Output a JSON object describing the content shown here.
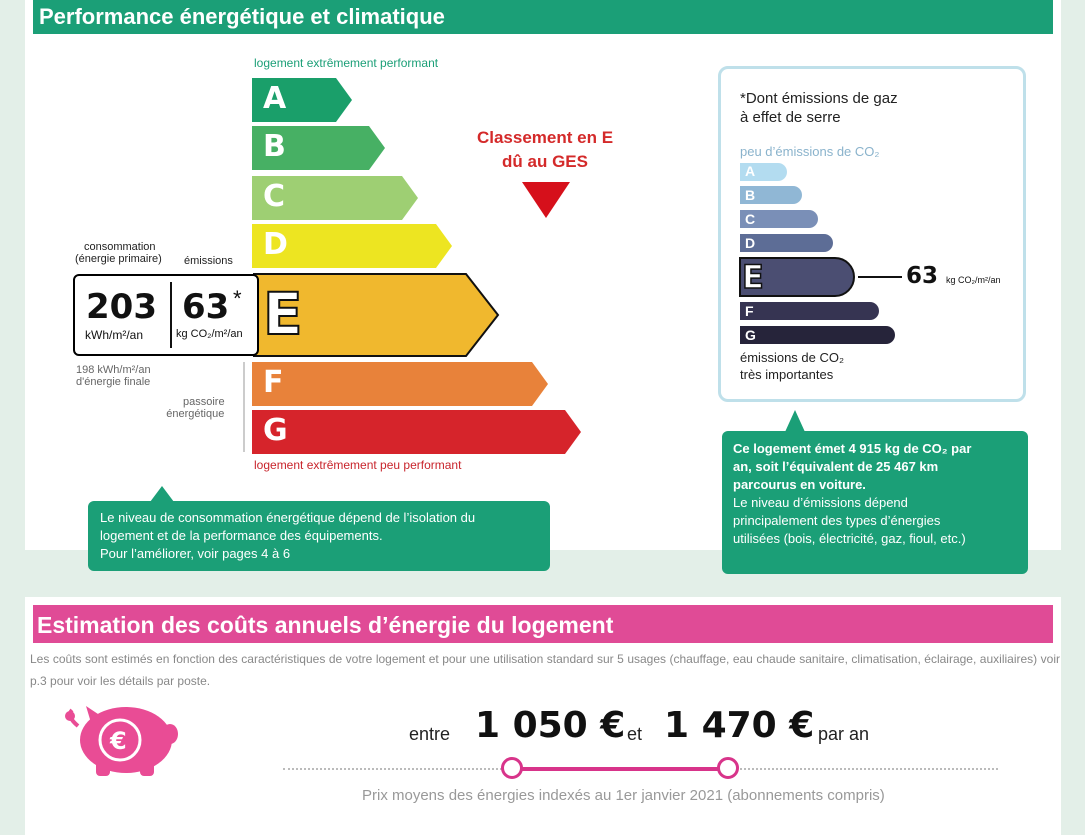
{
  "section1": {
    "title": "Performance énergétique et climatique",
    "top_label": "logement extrêmement performant",
    "bottom_label": "logement extrêmement peu performant",
    "letters": [
      "A",
      "B",
      "C",
      "D",
      "E",
      "F",
      "G"
    ],
    "bar_colors": [
      "#1a9f6a",
      "#47b064",
      "#9ecf73",
      "#ede521",
      "#f0b82e",
      "#e8823a",
      "#d6242b"
    ],
    "current_class": "E",
    "consumption_label_line1": "consommation",
    "consumption_label_line2": "(énergie primaire)",
    "emissions_label": "émissions",
    "consumption_value": "203",
    "consumption_unit": "kWh/m²/an",
    "emissions_value": "63",
    "emissions_star": "*",
    "emissions_unit": "kg CO₂/m²/an",
    "final_energy_line1": "198 kWh/m²/an",
    "final_energy_line2": "d'énergie finale",
    "passoire_line1": "passoire",
    "passoire_line2": "énergétique",
    "classement_line1": "Classement en E",
    "classement_line2": "dû au GES",
    "callout_left": [
      "Le niveau de consommation énergétique dépend de l’isolation du",
      "logement et de la performance des équipements.",
      "Pour l’améliorer, voir pages 4 à 6"
    ]
  },
  "ges": {
    "title_line1": "*Dont émissions de gaz",
    "title_line2": "à effet de serre",
    "top_label": "peu d’émissions de CO₂",
    "letters": [
      "A",
      "B",
      "C",
      "D",
      "E",
      "F",
      "G"
    ],
    "bar_colors": [
      "#b3dcf0",
      "#90b7d5",
      "#7a8fb7",
      "#5d6d96",
      "#4b4e72",
      "#363452",
      "#26243a"
    ],
    "value": "63",
    "value_unit": "kg CO₂/m²/an",
    "bottom_label_line1": "émissions de CO₂",
    "bottom_label_line2": "très importantes",
    "callout_bold": [
      "Ce logement émet 4 915 kg de CO₂ par",
      "an, soit l’équivalent de 25 467 km",
      "parcourus en voiture."
    ],
    "callout_normal": [
      "Le niveau d’émissions dépend",
      "principalement des types d’énergies",
      "utilisées (bois, électricité, gaz, fioul, etc.)"
    ]
  },
  "section2": {
    "title": "Estimation des coûts annuels d’énergie du logement",
    "note": "Les coûts sont estimés en fonction des caractéristiques de votre logement et pour une utilisation standard sur 5 usages (chauffage, eau chaude sanitaire, climatisation, éclairage, auxiliaires) voir p.3 pour voir les détails par poste.",
    "word_between": "entre",
    "min_cost": "1 050 €",
    "word_and": "et",
    "max_cost": "1 470 €",
    "per_year": "par an",
    "footnote": "Prix moyens des énergies indexés au  1er janvier 2021 (abonnements compris)",
    "piggy_symbol": "€",
    "piggy_color": "#e94c95"
  }
}
